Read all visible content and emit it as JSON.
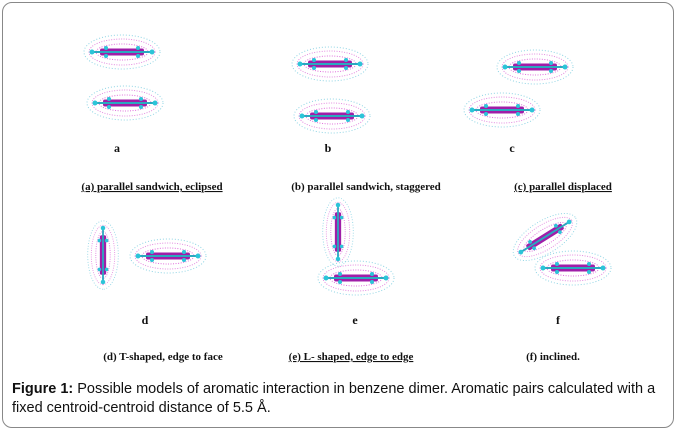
{
  "panels": [
    {
      "letter": "a",
      "caption": "(a) parallel sandwich, eclipsed",
      "underlined": true
    },
    {
      "letter": "b",
      "caption": "(b) parallel sandwich, staggered",
      "underlined": false
    },
    {
      "letter": "c",
      "caption": "(c) parallel displaced",
      "underlined": true
    },
    {
      "letter": "d",
      "caption": "(d) T-shaped, edge to face",
      "underlined": false
    },
    {
      "letter": "e",
      "caption": "(e) L- shaped, edge to edge",
      "underlined": true
    },
    {
      "letter": "f",
      "caption": "(f) inclined.",
      "underlined": false
    }
  ],
  "figure_caption": {
    "label": "Figure 1:",
    "text": "Possible models of aromatic interaction in benzene dimer. Aromatic pairs calculated with a fixed centroid-centroid distance of 5.5 Å."
  }
}
